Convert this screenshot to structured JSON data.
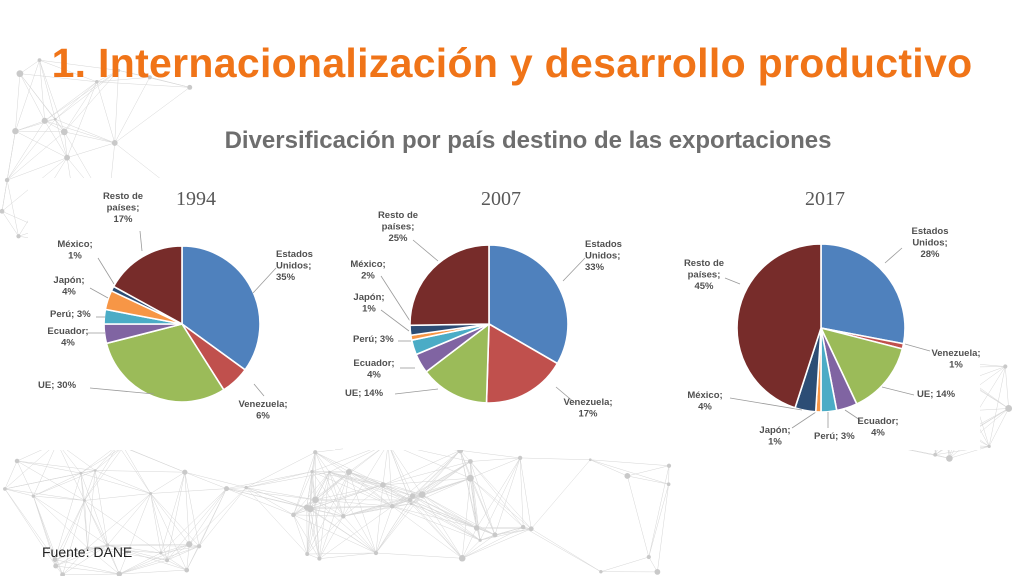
{
  "slide": {
    "title": "1. Internacionalización y desarrollo productivo",
    "subtitle": "Diversificación por país destino de las exportaciones",
    "source": "Fuente: DANE"
  },
  "colors": {
    "title": "#f07418",
    "Estados Unidos": "#4f81bd",
    "Venezuela": "#c0504d",
    "UE": "#9bbb59",
    "Ecuador": "#8064a2",
    "Perú": "#4bacc6",
    "Japón": "#f79646",
    "México": "#2c4d75",
    "Resto de países": "#772c2a"
  },
  "chart_data": [
    {
      "type": "pie",
      "title": "1994",
      "slices": [
        {
          "name": "Estados Unidos",
          "value": 35,
          "label": [
            "Estados",
            "Unidos;",
            "35%"
          ]
        },
        {
          "name": "Venezuela",
          "value": 6,
          "label": [
            "Venezuela;",
            "6%"
          ]
        },
        {
          "name": "UE",
          "value": 30,
          "label": [
            "UE; 30%"
          ]
        },
        {
          "name": "Ecuador",
          "value": 4,
          "label": [
            "Ecuador;",
            "4%"
          ]
        },
        {
          "name": "Perú",
          "value": 3,
          "label": [
            "Perú; 3%"
          ]
        },
        {
          "name": "Japón",
          "value": 4,
          "label": [
            "Japón;",
            "4%"
          ]
        },
        {
          "name": "México",
          "value": 1,
          "label": [
            "México;",
            "1%"
          ]
        },
        {
          "name": "Resto de países",
          "value": 17,
          "label": [
            "Resto de",
            "países;",
            "17%"
          ]
        }
      ]
    },
    {
      "type": "pie",
      "title": "2007",
      "slices": [
        {
          "name": "Estados Unidos",
          "value": 33,
          "label": [
            "Estados",
            "Unidos;",
            "33%"
          ]
        },
        {
          "name": "Venezuela",
          "value": 17,
          "label": [
            "Venezuela;",
            "17%"
          ]
        },
        {
          "name": "UE",
          "value": 14,
          "label": [
            "UE; 14%"
          ]
        },
        {
          "name": "Ecuador",
          "value": 4,
          "label": [
            "Ecuador;",
            "4%"
          ]
        },
        {
          "name": "Perú",
          "value": 3,
          "label": [
            "Perú; 3%"
          ]
        },
        {
          "name": "Japón",
          "value": 1,
          "label": [
            "Japón;",
            "1%"
          ]
        },
        {
          "name": "México",
          "value": 2,
          "label": [
            "México;",
            "2%"
          ]
        },
        {
          "name": "Resto de países",
          "value": 25,
          "label": [
            "Resto de",
            "países;",
            "25%"
          ]
        }
      ]
    },
    {
      "type": "pie",
      "title": "2017",
      "slices": [
        {
          "name": "Estados Unidos",
          "value": 28,
          "label": [
            "Estados",
            "Unidos;",
            "28%"
          ]
        },
        {
          "name": "Venezuela",
          "value": 1,
          "label": [
            "Venezuela;",
            "1%"
          ]
        },
        {
          "name": "UE",
          "value": 14,
          "label": [
            "UE; 14%"
          ]
        },
        {
          "name": "Ecuador",
          "value": 4,
          "label": [
            "Ecuador;",
            "4%"
          ]
        },
        {
          "name": "Perú",
          "value": 3,
          "label": [
            "Perú; 3%"
          ]
        },
        {
          "name": "Japón",
          "value": 1,
          "label": [
            "Japón;",
            "1%"
          ]
        },
        {
          "name": "México",
          "value": 4,
          "label": [
            "México;",
            "4%"
          ]
        },
        {
          "name": "Resto de países",
          "value": 45,
          "label": [
            "Resto de",
            "países;",
            "45%"
          ]
        }
      ]
    }
  ]
}
